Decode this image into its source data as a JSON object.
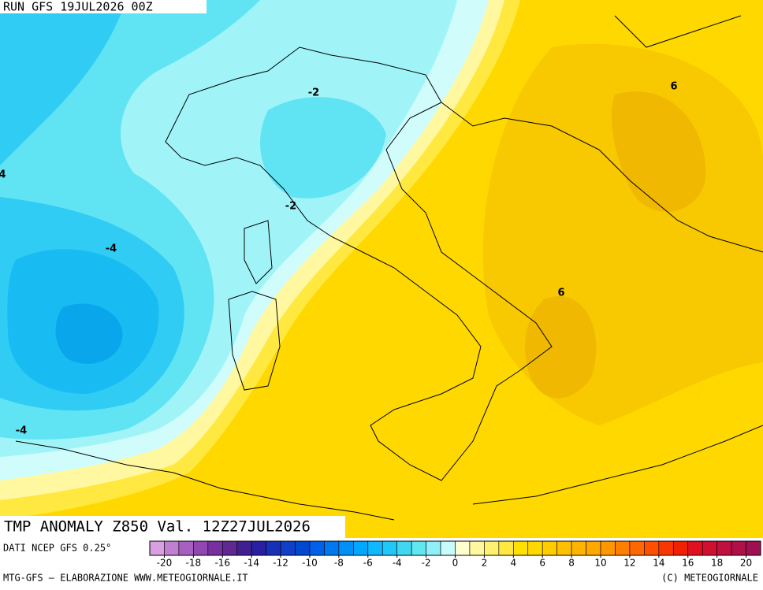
{
  "header": {
    "run": "RUN GFS 19JUL2026 00Z"
  },
  "map": {
    "contour_labels": [
      "-2",
      "-2",
      "-4",
      "-4",
      "6",
      "6",
      "4"
    ]
  },
  "title": "TMP ANOMALY Z850 Val. 12Z27JUL2026",
  "source": "DATI NCEP GFS 0.25°",
  "colorbar": {
    "range": [
      -21,
      21
    ],
    "ticks": [
      -20,
      -18,
      -16,
      -14,
      -12,
      -10,
      -8,
      -6,
      -4,
      -2,
      0,
      2,
      4,
      6,
      8,
      10,
      12,
      14,
      16,
      18,
      20
    ],
    "colors": [
      "#d8a0e0",
      "#c080d0",
      "#a860c0",
      "#9048b0",
      "#7830a0",
      "#602890",
      "#402090",
      "#2820a0",
      "#1830b8",
      "#1040c8",
      "#0048d0",
      "#0060e8",
      "#0078f0",
      "#0090f8",
      "#00a8ff",
      "#10b8ff",
      "#20c8f8",
      "#40d8f0",
      "#60e8f0",
      "#90f0f8",
      "#c8fcfc",
      "#ffffd0",
      "#fff8a0",
      "#fff070",
      "#ffe840",
      "#ffe000",
      "#ffd800",
      "#ffcc00",
      "#ffc000",
      "#ffb400",
      "#ffa800",
      "#ff9800",
      "#ff8000",
      "#ff6800",
      "#ff5000",
      "#f83800",
      "#f02000",
      "#e01020",
      "#d01030",
      "#c01040",
      "#b01048",
      "#a01050"
    ]
  },
  "footer": {
    "left": "MTG-GFS — ELABORAZIONE WWW.METEOGIORNALE.IT",
    "right": "(C) METEOGIORNALE"
  }
}
